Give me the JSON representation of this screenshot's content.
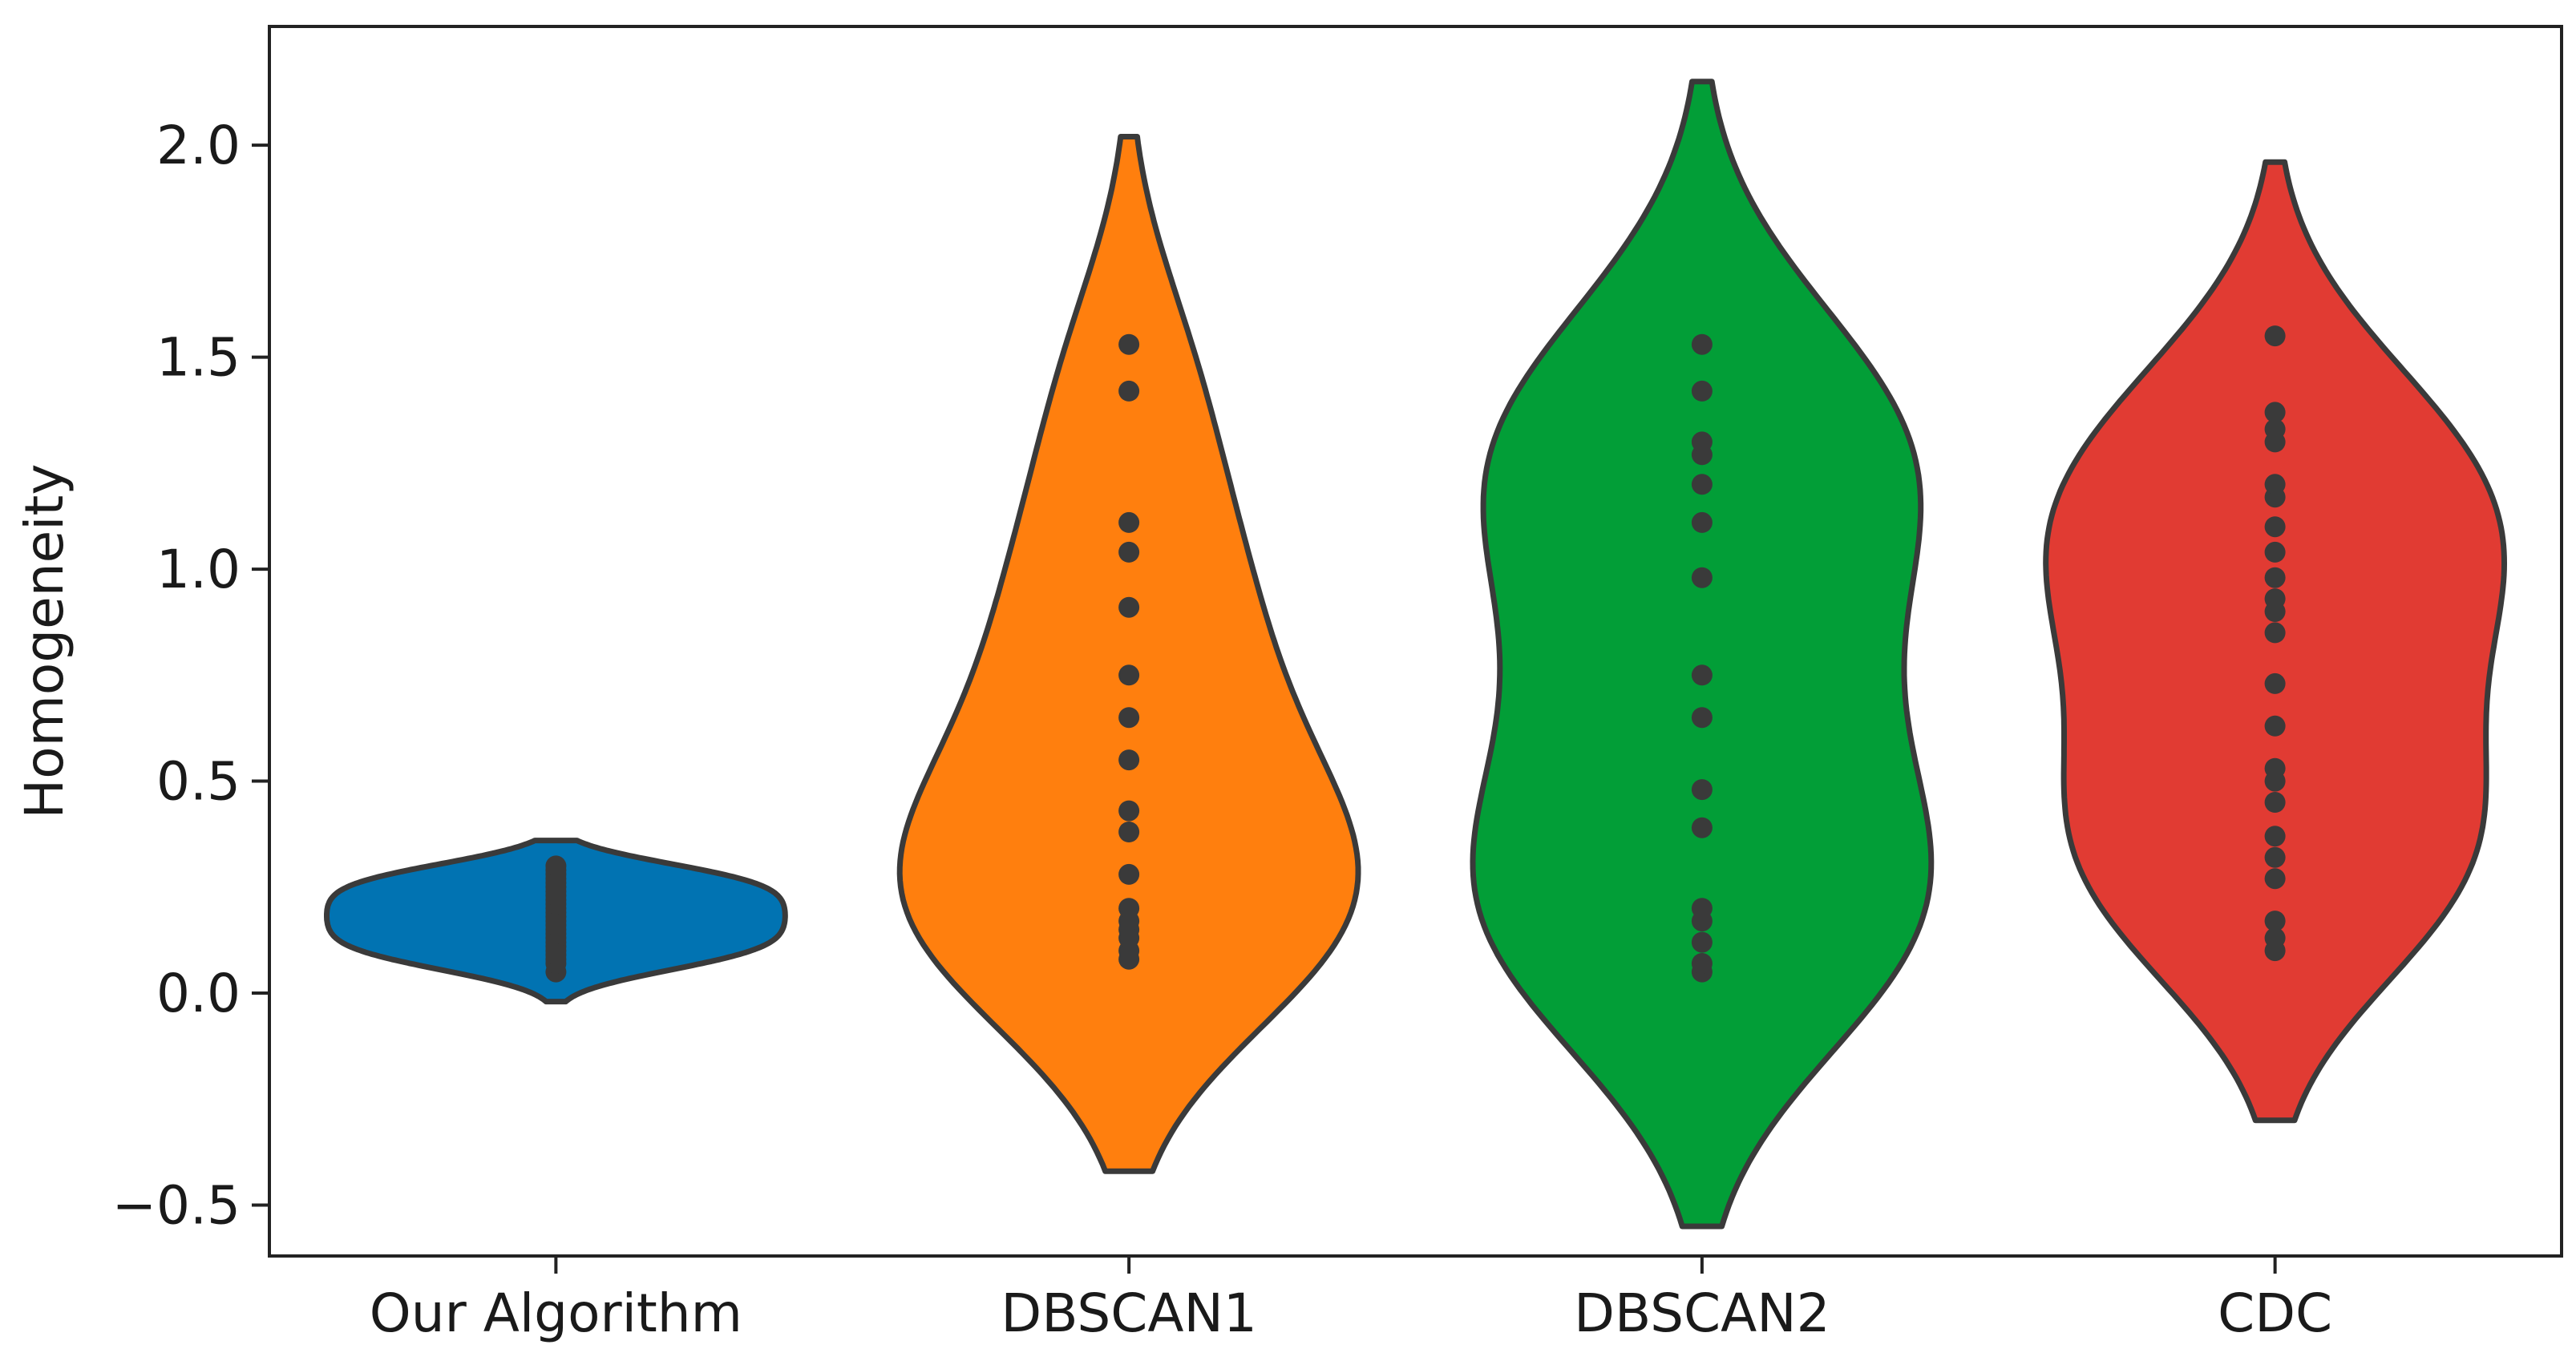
{
  "chart_data": {
    "type": "violin",
    "title": "",
    "xlabel": "",
    "ylabel": "Homogeneity",
    "ylim": [
      -0.62,
      2.28
    ],
    "yticks": [
      -0.5,
      0.0,
      0.5,
      1.0,
      1.5,
      2.0
    ],
    "ytick_labels": [
      "−0.5",
      "0.0",
      "0.5",
      "1.0",
      "1.5",
      "2.0"
    ],
    "grid": false,
    "legend": "none",
    "inner": "point",
    "categories": [
      "Our Algorithm",
      "DBSCAN1",
      "DBSCAN2",
      "CDC"
    ],
    "series": [
      {
        "color": "#0173b2",
        "extent": [
          -0.02,
          0.36
        ],
        "points": [
          0.05,
          0.07,
          0.08,
          0.09,
          0.1,
          0.11,
          0.12,
          0.13,
          0.14,
          0.15,
          0.16,
          0.17,
          0.18,
          0.19,
          0.2,
          0.21,
          0.22,
          0.23,
          0.24,
          0.25,
          0.26,
          0.27,
          0.28,
          0.29,
          0.3
        ]
      },
      {
        "color": "#ff7f0e",
        "extent": [
          -0.42,
          2.02
        ],
        "points": [
          0.08,
          0.1,
          0.13,
          0.15,
          0.17,
          0.2,
          0.28,
          0.38,
          0.43,
          0.55,
          0.65,
          0.75,
          0.91,
          1.04,
          1.11,
          1.42,
          1.53
        ]
      },
      {
        "color": "#029e37",
        "extent": [
          -0.55,
          2.15
        ],
        "points": [
          0.05,
          0.07,
          0.12,
          0.17,
          0.2,
          0.39,
          0.48,
          0.65,
          0.75,
          0.98,
          1.11,
          1.2,
          1.27,
          1.3,
          1.42,
          1.53
        ]
      },
      {
        "color": "#e13b33",
        "extent": [
          -0.3,
          1.96
        ],
        "points": [
          0.1,
          0.13,
          0.17,
          0.27,
          0.32,
          0.37,
          0.45,
          0.5,
          0.53,
          0.63,
          0.73,
          0.85,
          0.9,
          0.93,
          0.98,
          1.04,
          1.1,
          1.17,
          1.2,
          1.3,
          1.33,
          1.37,
          1.55
        ]
      }
    ]
  }
}
